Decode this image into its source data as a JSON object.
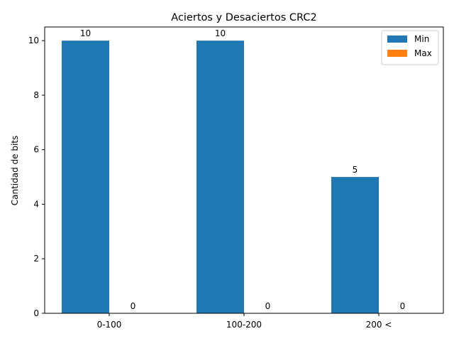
{
  "chart_data": {
    "type": "bar",
    "title": "Aciertos y Desaciertos CRC2",
    "xlabel": "",
    "ylabel": "Cantidad de bits",
    "categories": [
      "0-100",
      "100-200",
      "200 <"
    ],
    "series": [
      {
        "name": "Min",
        "values": [
          10,
          10,
          5
        ],
        "color": "#1f77b4"
      },
      {
        "name": "Max",
        "values": [
          0,
          0,
          0
        ],
        "color": "#ff7f0e"
      }
    ],
    "data_labels": [
      [
        "10",
        "10",
        "5"
      ],
      [
        "0",
        "0",
        "0"
      ]
    ],
    "ylim": [
      0,
      10.5
    ],
    "yticks": [
      0,
      2,
      4,
      6,
      8,
      10
    ],
    "ytick_labels": [
      "0",
      "2",
      "4",
      "6",
      "8",
      "10"
    ],
    "grid": false,
    "legend_position": "top-right"
  }
}
